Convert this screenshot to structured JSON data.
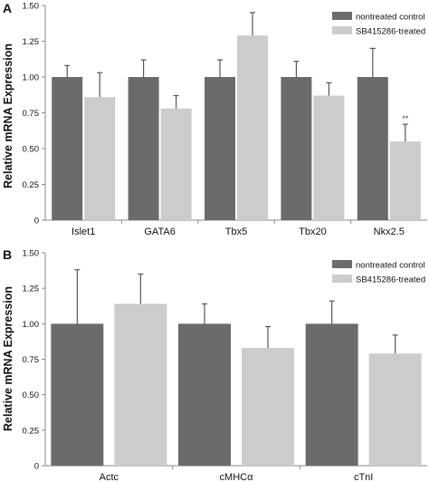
{
  "colors": {
    "series_dark": "#6b6b6b",
    "series_light": "#cccccc",
    "axis": "#8a8a8a",
    "text": "#111111"
  },
  "chart_data": [
    {
      "panel_label": "A",
      "type": "bar",
      "ylabel": "Relative mRNA Expression",
      "ylim": [
        0,
        1.5
      ],
      "yticks": [
        "0",
        "0.25",
        "0.50",
        "0.75",
        "1.00",
        "1.25",
        "1.50"
      ],
      "categories": [
        "Islet1",
        "GATA6",
        "Tbx5",
        "Tbx20",
        "Nkx2.5"
      ],
      "series": [
        {
          "name": "nontreated control",
          "values": [
            1.0,
            1.0,
            1.0,
            1.0,
            1.0
          ],
          "errors": [
            0.08,
            0.12,
            0.12,
            0.11,
            0.2
          ]
        },
        {
          "name": "SB415286-treated",
          "values": [
            0.86,
            0.78,
            1.29,
            0.87,
            0.55
          ],
          "errors": [
            0.17,
            0.09,
            0.16,
            0.09,
            0.12
          ]
        }
      ],
      "annotations": [
        {
          "category": "Nkx2.5",
          "series": "SB415286-treated",
          "text": "**"
        }
      ],
      "legend": "top-right",
      "grid": false
    },
    {
      "panel_label": "B",
      "type": "bar",
      "ylabel": "Relative mRNA Expression",
      "ylim": [
        0,
        1.5
      ],
      "yticks": [
        "0",
        "0.25",
        "0.50",
        "0.75",
        "1.00",
        "1.25",
        "1.50"
      ],
      "categories": [
        "Actc",
        "cMHCα",
        "cTnI"
      ],
      "series": [
        {
          "name": "nontreated control",
          "values": [
            1.0,
            1.0,
            1.0
          ],
          "errors": [
            0.38,
            0.14,
            0.16
          ]
        },
        {
          "name": "SB415286-treated",
          "values": [
            1.14,
            0.83,
            0.79
          ],
          "errors": [
            0.21,
            0.15,
            0.13
          ]
        }
      ],
      "annotations": [],
      "legend": "top-right",
      "grid": false
    }
  ]
}
